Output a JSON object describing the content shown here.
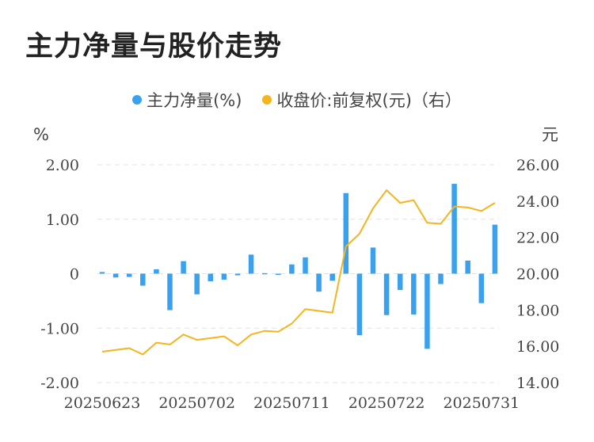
{
  "chart_data": {
    "type": "bar+line",
    "title": "主力净量与股价走势",
    "legend": {
      "position": "top-center",
      "items": [
        {
          "label": "主力净量(%)",
          "color": "#3aa1ef"
        },
        {
          "label": "收盘价:前复权(元)（右）",
          "color": "#f4b51e"
        }
      ]
    },
    "y_left": {
      "unit": "%",
      "ticks": [
        "2.00",
        "1.00",
        "0",
        "-1.00",
        "-2.00"
      ],
      "range": [
        -2,
        2
      ]
    },
    "y_right": {
      "unit": "元",
      "ticks": [
        "26.00",
        "24.00",
        "22.00",
        "20.00",
        "18.00",
        "16.00",
        "14.00"
      ],
      "range": [
        14,
        26
      ]
    },
    "x_ticks": [
      {
        "label": "20250623",
        "index": 0
      },
      {
        "label": "20250702",
        "index": 7
      },
      {
        "label": "20250711",
        "index": 14
      },
      {
        "label": "20250722",
        "index": 21
      },
      {
        "label": "20250731",
        "index": 28
      }
    ],
    "grid": "horizontal-dashed",
    "series": [
      {
        "name": "主力净量(%)",
        "type": "bar",
        "color": "#3aa1ef",
        "values": [
          0.03,
          -0.07,
          -0.06,
          -0.22,
          0.08,
          -0.67,
          0.23,
          -0.38,
          -0.14,
          -0.11,
          -0.03,
          0.35,
          0.01,
          -0.02,
          0.17,
          0.3,
          -0.33,
          -0.13,
          1.48,
          -1.13,
          0.48,
          -0.76,
          -0.3,
          -0.75,
          -1.38,
          -0.19,
          1.65,
          0.24,
          -0.54,
          0.9
        ]
      },
      {
        "name": "收盘价:前复权(元)（右）",
        "type": "line",
        "color": "#f4b51e",
        "values": [
          15.7,
          15.8,
          15.9,
          15.55,
          16.2,
          16.1,
          16.65,
          16.35,
          16.45,
          16.55,
          16.05,
          16.65,
          16.85,
          16.8,
          17.25,
          18.05,
          17.95,
          17.85,
          21.5,
          22.2,
          23.6,
          24.6,
          23.9,
          24.05,
          22.8,
          22.75,
          23.7,
          23.65,
          23.45,
          23.9
        ]
      }
    ]
  }
}
